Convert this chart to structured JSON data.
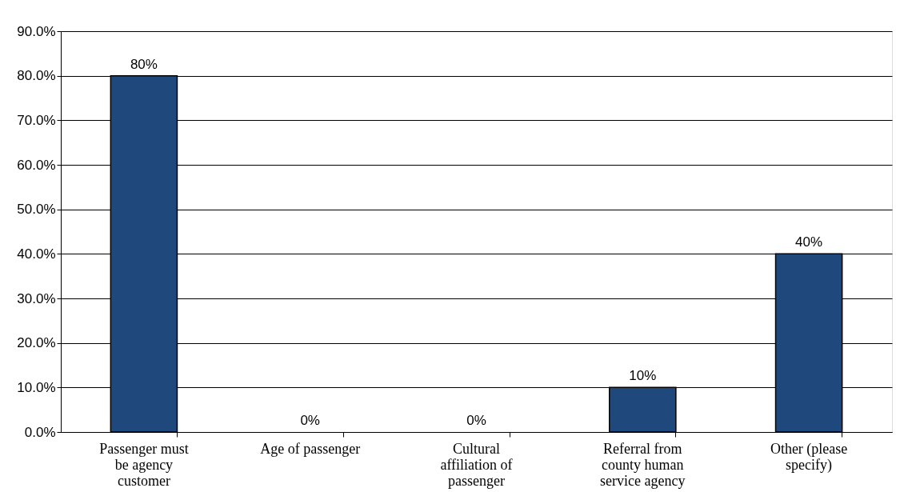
{
  "chart_data": {
    "type": "bar",
    "categories": [
      "Passenger must be agency customer",
      "Age of passenger",
      "Cultural affiliation of passenger",
      "Referral from county human service agency",
      "Other (please specify)"
    ],
    "values": [
      80,
      0,
      0,
      10,
      40
    ],
    "value_labels": [
      "80%",
      "0%",
      "0%",
      "10%",
      "40%"
    ],
    "color": "#1f497d",
    "ylim": [
      0,
      90
    ],
    "yticks": [
      {
        "value": 0,
        "label": "0.0%"
      },
      {
        "value": 10,
        "label": "10.0%"
      },
      {
        "value": 20,
        "label": "20.0%"
      },
      {
        "value": 30,
        "label": "30.0%"
      },
      {
        "value": 40,
        "label": "40.0%"
      },
      {
        "value": 50,
        "label": "50.0%"
      },
      {
        "value": 60,
        "label": "60.0%"
      },
      {
        "value": 70,
        "label": "70.0%"
      },
      {
        "value": 80,
        "label": "80.0%"
      },
      {
        "value": 90,
        "label": "90.0%"
      }
    ],
    "grid": "y"
  }
}
